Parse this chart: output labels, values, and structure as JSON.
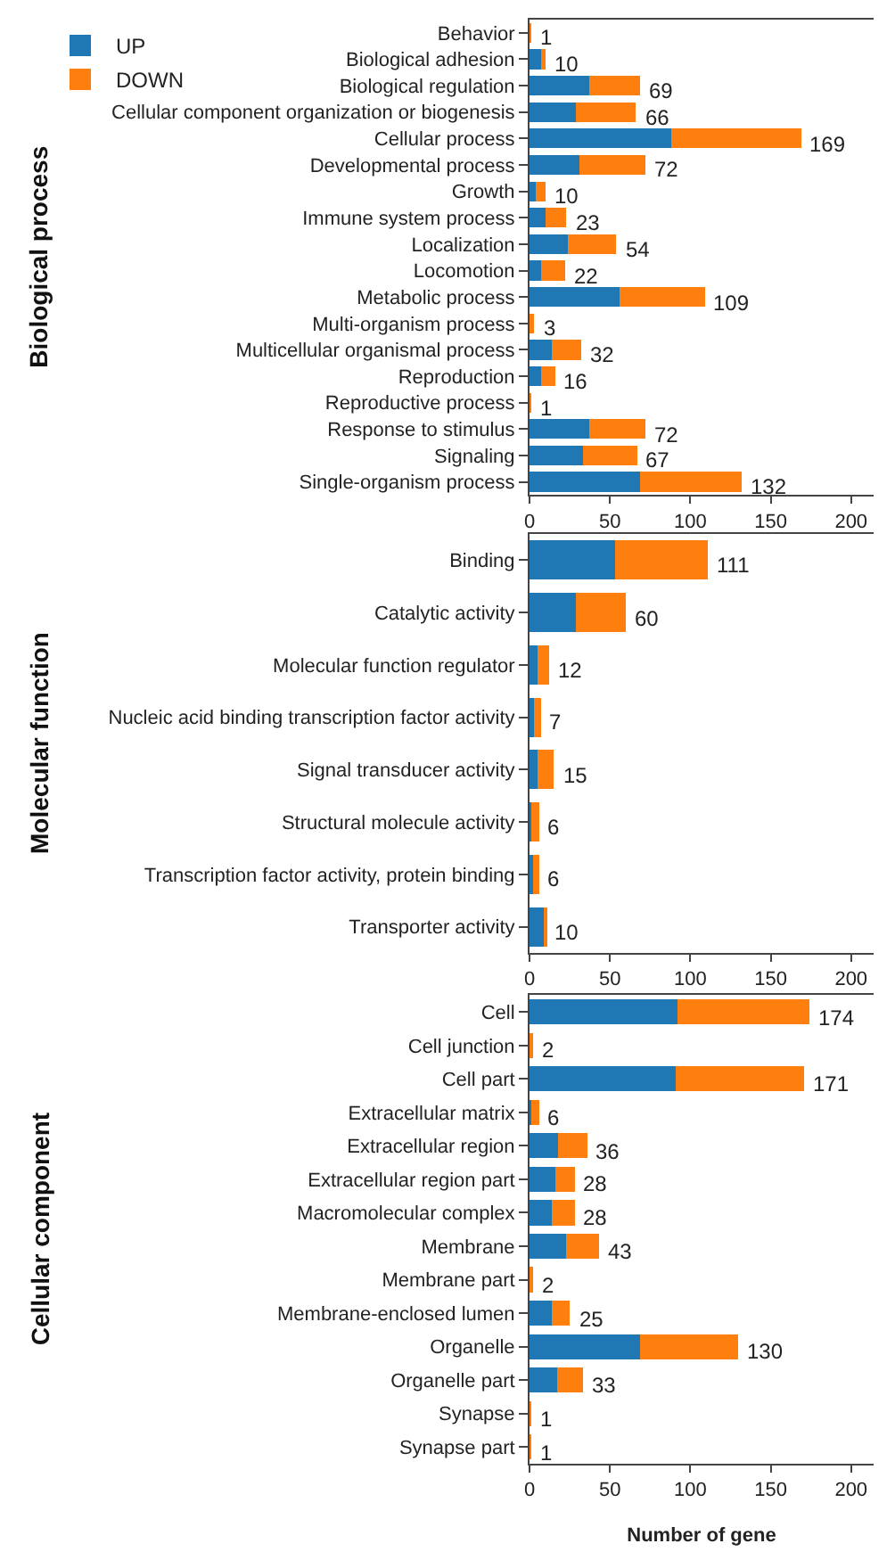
{
  "chart_data": [
    {
      "type": "bar",
      "orientation": "horizontal",
      "stacked": true,
      "ylabel": "Biological process",
      "legend": "top left",
      "categories": [
        "Behavior",
        "Biological adhesion",
        "Biological regulation",
        "Cellular component organization or biogenesis",
        "Cellular process",
        "Developmental process",
        "Growth",
        "Immune system process",
        "Localization",
        "Locomotion",
        "Metabolic process",
        "Multi-organism process",
        "Multicellular organismal process",
        "Reproduction",
        "Reproductive process",
        "Response to stimulus",
        "Signaling",
        "Single-organism process"
      ],
      "series": [
        {
          "name": "UP",
          "color": "#1f77b4",
          "values": [
            0,
            7,
            37,
            29,
            88,
            31,
            4,
            10,
            24,
            7,
            56,
            0,
            14,
            7,
            0,
            37,
            33,
            69
          ]
        },
        {
          "name": "DOWN",
          "color": "#ff7f0e",
          "values": [
            1,
            3,
            32,
            37,
            81,
            41,
            6,
            13,
            30,
            15,
            53,
            3,
            18,
            9,
            1,
            35,
            34,
            63
          ]
        }
      ],
      "totals": [
        "1",
        "10",
        "69",
        "66",
        "169",
        "72",
        "10",
        "23",
        "54",
        "22",
        "109",
        "3",
        "32",
        "16",
        "1",
        "72",
        "67",
        "132"
      ],
      "xlim": [
        0,
        214
      ],
      "xticks": [
        0,
        50,
        100,
        150,
        200
      ]
    },
    {
      "type": "bar",
      "orientation": "horizontal",
      "stacked": true,
      "ylabel": "Molecular function",
      "categories": [
        "Binding",
        "Catalytic activity",
        "Molecular function regulator",
        "Nucleic acid binding transcription factor activity",
        "Signal transducer activity",
        "Structural molecule activity",
        "Transcription factor activity, protein binding",
        "Transporter activity"
      ],
      "series": [
        {
          "color": "#1f77b4",
          "values": [
            53,
            29,
            5,
            3,
            5,
            1,
            2,
            9
          ]
        },
        {
          "color": "#ff7f0e",
          "values": [
            58,
            31,
            7,
            4,
            10,
            5,
            4,
            1
          ]
        }
      ],
      "totals": [
        "111",
        "60",
        "12",
        "7",
        "15",
        "6",
        "6",
        "10"
      ],
      "xlim": [
        0,
        214
      ],
      "xticks": [
        0,
        50,
        100,
        150,
        200
      ]
    },
    {
      "type": "bar",
      "orientation": "horizontal",
      "stacked": true,
      "ylabel": "Cellular component",
      "xlabel": "Number of gene",
      "categories": [
        "Cell",
        "Cell junction",
        "Cell part",
        "Extracellular matrix",
        "Extracellular region",
        "Extracellular region part",
        "Macromolecular complex",
        "Membrane",
        "Membrane part",
        "Membrane-enclosed lumen",
        "Organelle",
        "Organelle part",
        "Synapse",
        "Synapse part"
      ],
      "series": [
        {
          "color": "#1f77b4",
          "values": [
            92,
            0,
            91,
            1,
            18,
            16,
            14,
            23,
            0,
            14,
            69,
            17,
            0,
            0
          ]
        },
        {
          "color": "#ff7f0e",
          "values": [
            82,
            2,
            80,
            5,
            18,
            12,
            14,
            20,
            2,
            11,
            61,
            16,
            1,
            1
          ]
        }
      ],
      "totals": [
        "174",
        "2",
        "171",
        "6",
        "36",
        "28",
        "28",
        "43",
        "2",
        "25",
        "130",
        "33",
        "1",
        "1"
      ],
      "xlim": [
        0,
        214
      ],
      "xticks": [
        0,
        50,
        100,
        150,
        200
      ]
    }
  ]
}
